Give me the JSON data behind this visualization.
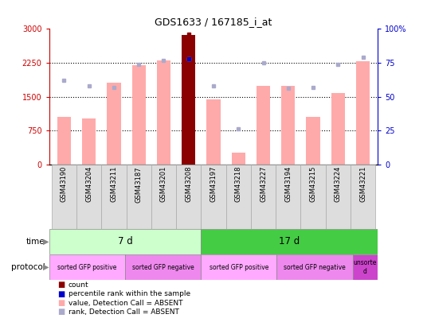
{
  "title": "GDS1633 / 167185_i_at",
  "samples": [
    "GSM43190",
    "GSM43204",
    "GSM43211",
    "GSM43187",
    "GSM43201",
    "GSM43208",
    "GSM43197",
    "GSM43218",
    "GSM43227",
    "GSM43194",
    "GSM43215",
    "GSM43224",
    "GSM43221"
  ],
  "bar_values": [
    1050,
    1020,
    1800,
    2200,
    2300,
    2870,
    1430,
    250,
    1730,
    1730,
    1050,
    1580,
    2280
  ],
  "bar_colors": [
    "#ffaaaa",
    "#ffaaaa",
    "#ffaaaa",
    "#ffaaaa",
    "#ffaaaa",
    "#8b0000",
    "#ffaaaa",
    "#ffaaaa",
    "#ffaaaa",
    "#ffaaaa",
    "#ffaaaa",
    "#ffaaaa",
    "#ffaaaa"
  ],
  "rank_values": [
    62,
    58,
    57,
    74,
    77,
    78,
    58,
    26,
    75,
    56,
    57,
    74,
    79
  ],
  "rank_dot_color": "#aaaacc",
  "count_dot_color": "#8b0000",
  "percentile_dot_color": "#0000cc",
  "percentile_dot_value": 78,
  "percentile_dot_index": 5,
  "ylim_left": [
    0,
    3000
  ],
  "ylim_right": [
    0,
    100
  ],
  "yticks_left": [
    0,
    750,
    1500,
    2250,
    3000
  ],
  "yticks_right": [
    0,
    25,
    50,
    75,
    100
  ],
  "ytick_labels_left": [
    "0",
    "750",
    "1500",
    "2250",
    "3000"
  ],
  "ytick_labels_right": [
    "0",
    "25",
    "50",
    "75",
    "100%"
  ],
  "left_tick_color": "#cc0000",
  "right_tick_color": "#0000cc",
  "time_groups": [
    {
      "label": "7 d",
      "start": 0,
      "end": 6,
      "color": "#ccffcc"
    },
    {
      "label": "17 d",
      "start": 6,
      "end": 13,
      "color": "#44cc44"
    }
  ],
  "protocol_groups": [
    {
      "label": "sorted GFP positive",
      "start": 0,
      "end": 3,
      "color": "#ffaaff"
    },
    {
      "label": "sorted GFP negative",
      "start": 3,
      "end": 6,
      "color": "#ee88ee"
    },
    {
      "label": "sorted GFP positive",
      "start": 6,
      "end": 9,
      "color": "#ffaaff"
    },
    {
      "label": "sorted GFP negative",
      "start": 9,
      "end": 12,
      "color": "#ee88ee"
    },
    {
      "label": "unsorte\nd",
      "start": 12,
      "end": 13,
      "color": "#cc44cc"
    }
  ],
  "bar_width": 0.55,
  "n_samples": 13
}
